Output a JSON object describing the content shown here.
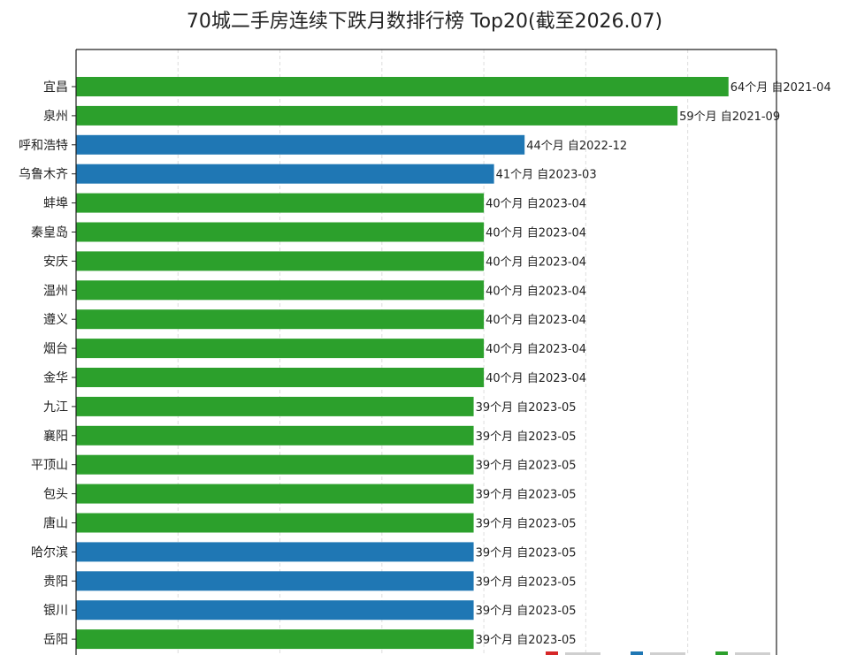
{
  "chart_data": {
    "type": "bar",
    "orientation": "horizontal",
    "title": "70城二手房连续下跌月数排行榜 Top20(截至2026.07)",
    "categories": [
      "宜昌",
      "泉州",
      "呼和浩特",
      "乌鲁木齐",
      "蚌埠",
      "秦皇岛",
      "安庆",
      "温州",
      "遵义",
      "烟台",
      "金华",
      "九江",
      "襄阳",
      "平顶山",
      "包头",
      "唐山",
      "哈尔滨",
      "贵阳",
      "银川",
      "岳阳"
    ],
    "values": [
      64,
      59,
      44,
      41,
      40,
      40,
      40,
      40,
      40,
      40,
      40,
      39,
      39,
      39,
      39,
      39,
      39,
      39,
      39,
      39
    ],
    "value_labels": [
      "64个月  自2021-04",
      "59个月  自2021-09",
      "44个月  自2022-12",
      "41个月  自2023-03",
      "40个月  自2023-04",
      "40个月  自2023-04",
      "40个月  自2023-04",
      "40个月  自2023-04",
      "40个月  自2023-04",
      "40个月  自2023-04",
      "40个月  自2023-04",
      "39个月  自2023-05",
      "39个月  自2023-05",
      "39个月  自2023-05",
      "39个月  自2023-05",
      "39个月  自2023-05",
      "39个月  自2023-05",
      "39个月  自2023-05",
      "39个月  自2023-05",
      "39个月  自2023-05"
    ],
    "bar_color_keys": [
      "g",
      "g",
      "b",
      "b",
      "g",
      "g",
      "g",
      "g",
      "g",
      "g",
      "g",
      "g",
      "g",
      "g",
      "g",
      "g",
      "b",
      "b",
      "b",
      "g"
    ],
    "colors": {
      "g": "#2ca02c",
      "b": "#1f77b4",
      "r": "#d62728"
    },
    "xlim": [
      0,
      70
    ],
    "grid": true,
    "legend_placement": "bottom-right",
    "legend_swatches": [
      "r",
      "b",
      "g"
    ]
  }
}
